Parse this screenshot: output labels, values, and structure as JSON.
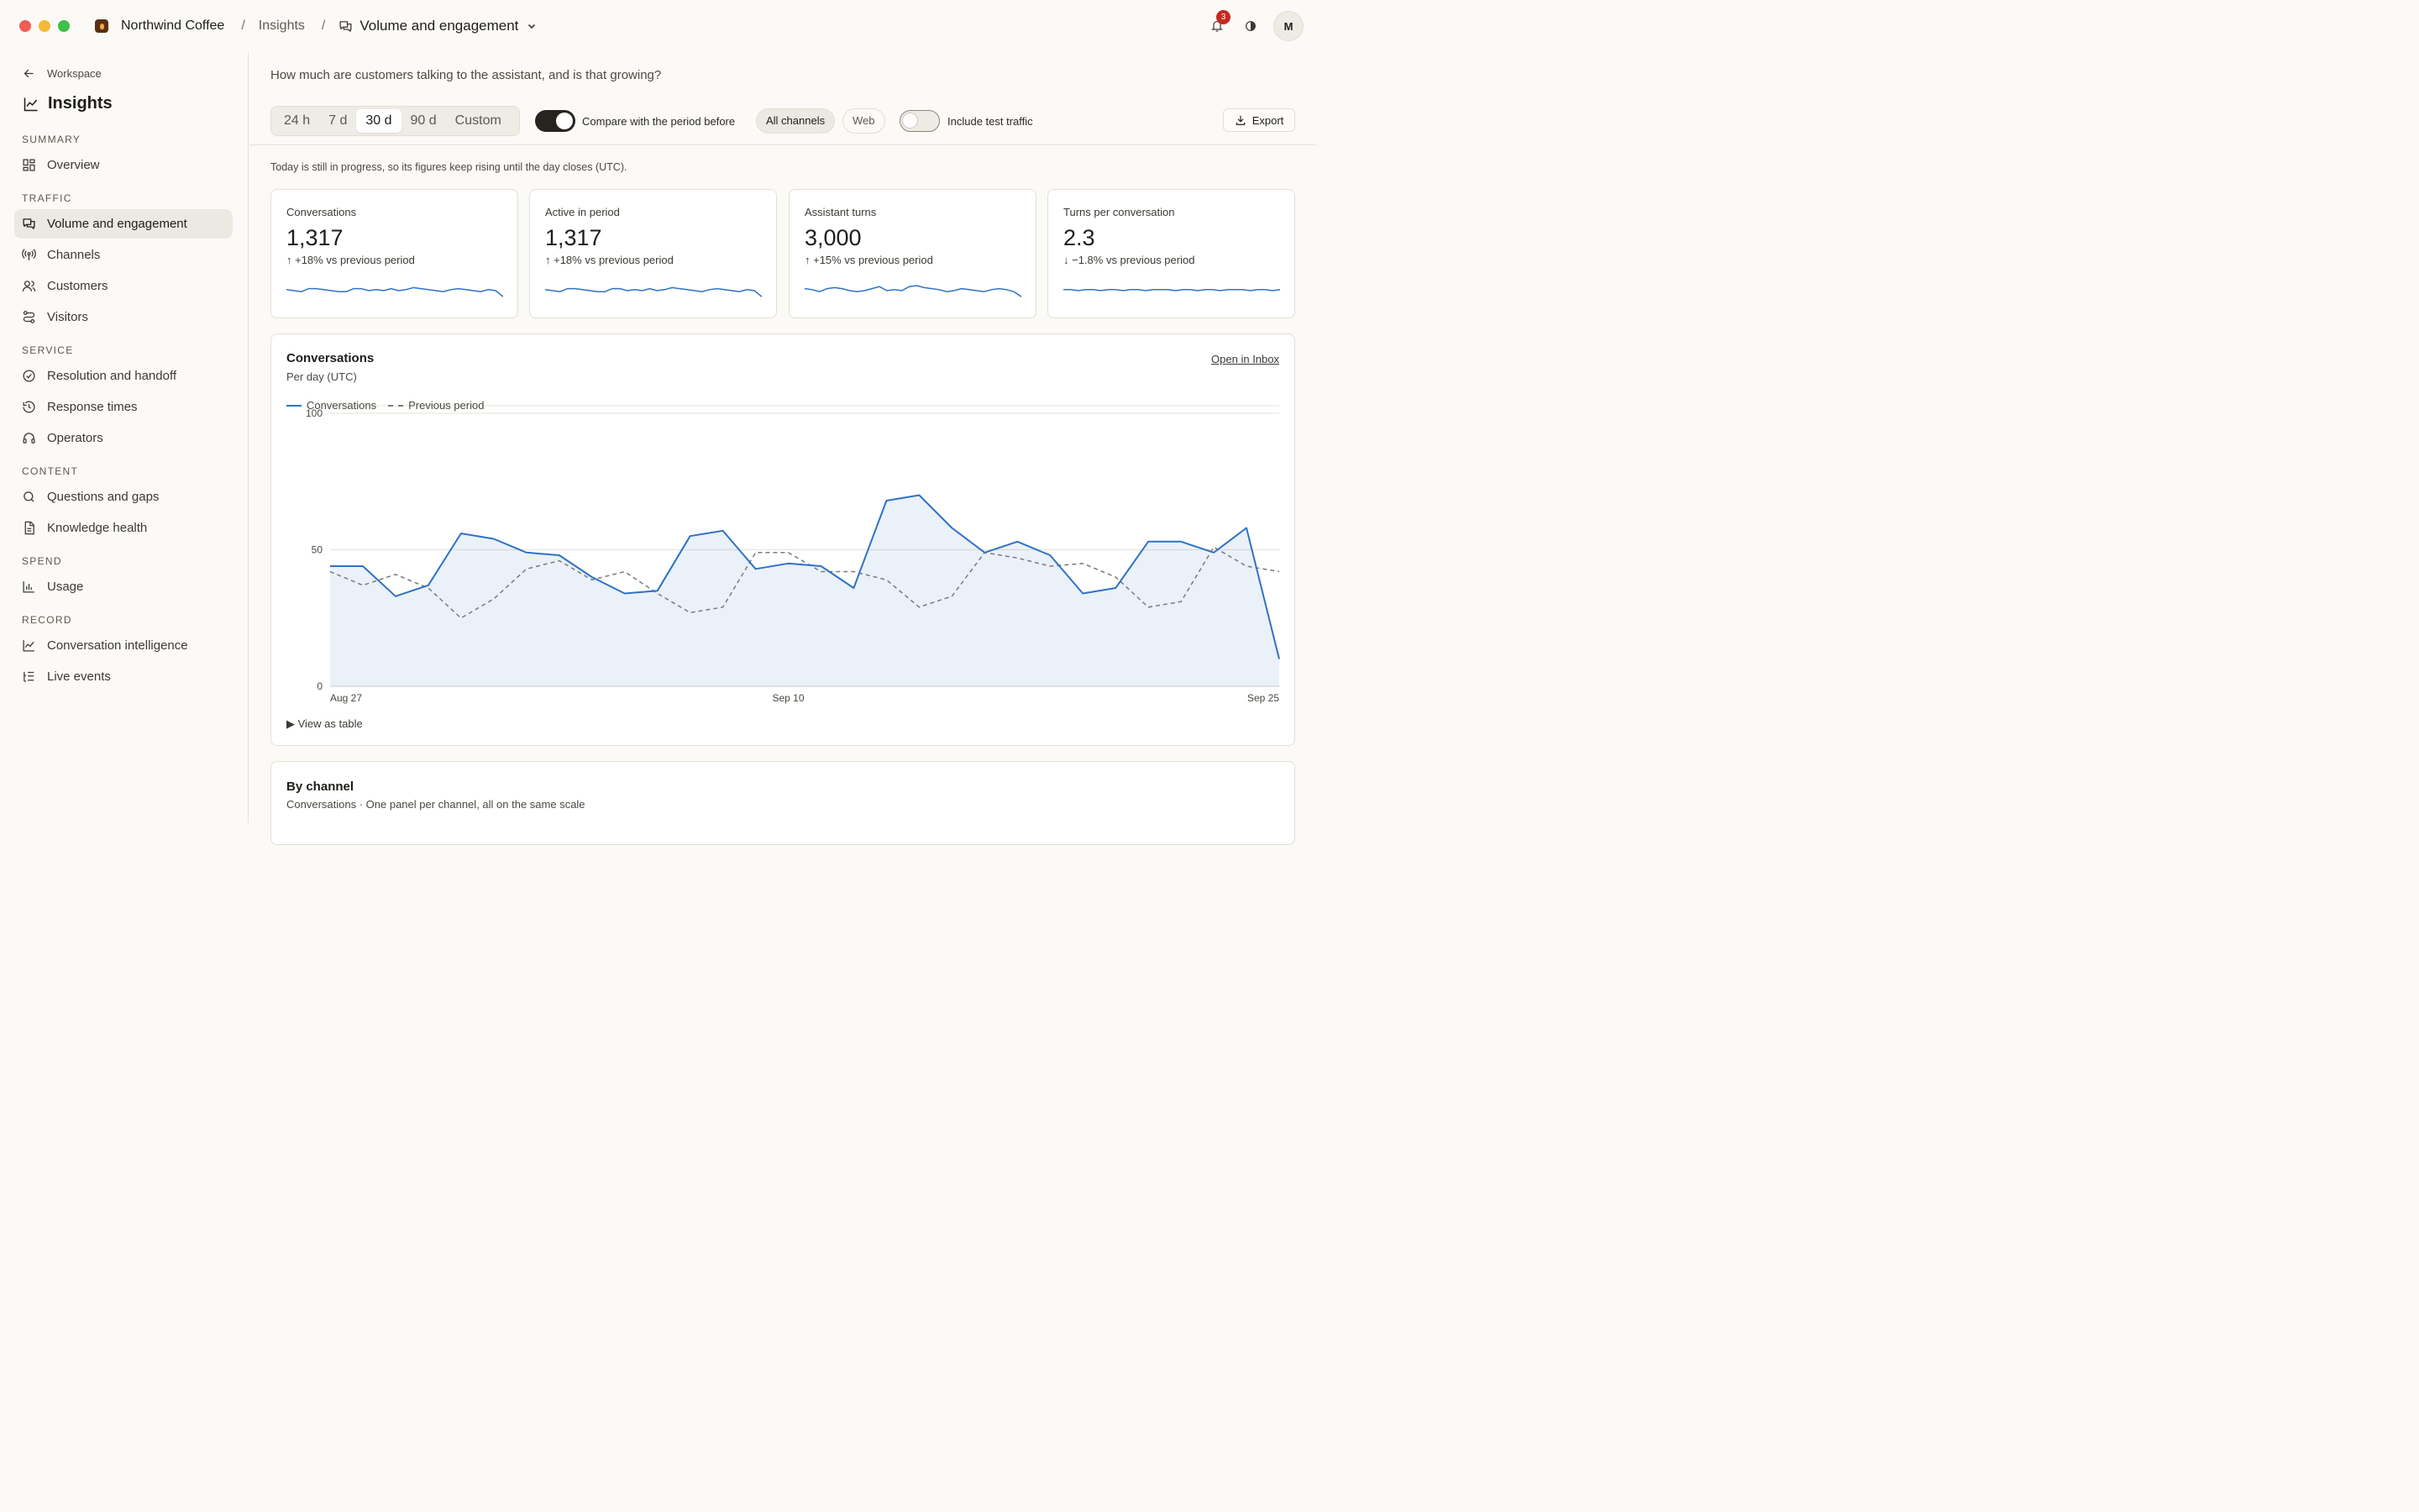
{
  "titlebar": {
    "brand": "Northwind Coffee",
    "crumb_section": "Insights",
    "crumb_current": "Volume and engagement",
    "notifications_count": "3",
    "avatar_initial": "M"
  },
  "sidebar": {
    "back_label": "Workspace",
    "title": "Insights",
    "sections": {
      "summary": "SUMMARY",
      "traffic": "TRAFFIC",
      "service": "SERVICE",
      "content": "CONTENT",
      "spend": "SPEND",
      "record": "RECORD"
    },
    "items": {
      "overview": "Overview",
      "volume": "Volume and engagement",
      "channels": "Channels",
      "customers": "Customers",
      "visitors": "Visitors",
      "resolution": "Resolution and handoff",
      "response": "Response times",
      "operators": "Operators",
      "questions": "Questions and gaps",
      "knowledge": "Knowledge health",
      "usage": "Usage",
      "intelligence": "Conversation intelligence",
      "live": "Live events"
    }
  },
  "main": {
    "question": "How much are customers talking to the assistant, and is that growing?",
    "ranges": [
      "24 h",
      "7 d",
      "30 d",
      "90 d",
      "Custom"
    ],
    "active_range": "30 d",
    "compare_label": "Compare with the period before",
    "compare_on": true,
    "channel_all": "All channels",
    "channel_web": "Web",
    "test_traffic_label": "Include test traffic",
    "test_traffic_on": false,
    "export_label": "Export",
    "note": "Today is still in progress, so its figures keep rising until the day closes (UTC)."
  },
  "kpis": [
    {
      "label": "Conversations",
      "value": "1,317",
      "delta": "↑ +18% vs previous period",
      "spark": [
        46,
        45,
        44,
        47,
        47,
        46,
        45,
        44,
        44,
        47,
        47,
        45,
        46,
        45,
        47,
        45,
        46,
        48,
        47,
        46,
        45,
        44,
        46,
        47,
        46,
        45,
        44,
        46,
        45,
        39
      ]
    },
    {
      "label": "Active in period",
      "value": "1,317",
      "delta": "↑ +18% vs previous period",
      "spark": [
        46,
        45,
        44,
        47,
        47,
        46,
        45,
        44,
        44,
        47,
        47,
        45,
        46,
        45,
        47,
        45,
        46,
        48,
        47,
        46,
        45,
        44,
        46,
        47,
        46,
        45,
        44,
        46,
        45,
        39
      ]
    },
    {
      "label": "Assistant turns",
      "value": "3,000",
      "delta": "↑ +15% vs previous period",
      "spark": [
        47,
        46,
        44,
        47,
        48,
        47,
        45,
        44,
        45,
        47,
        49,
        45,
        46,
        45,
        49,
        50,
        48,
        47,
        46,
        44,
        45,
        47,
        46,
        45,
        44,
        46,
        47,
        46,
        44,
        39
      ]
    },
    {
      "label": "Turns per conversation",
      "value": "2.3",
      "delta": "↓ −1.8% vs previous period",
      "spark": [
        46,
        46,
        45,
        46,
        46,
        45,
        46,
        46,
        45,
        46,
        46,
        45,
        46,
        46,
        46,
        45,
        46,
        46,
        45,
        46,
        46,
        45,
        46,
        46,
        46,
        45,
        46,
        46,
        45,
        46
      ]
    }
  ],
  "conversations_card": {
    "title": "Conversations",
    "subtitle": "Per day (UTC)",
    "link": "Open in Inbox",
    "view_table": "▶ View as table"
  },
  "chart_data": {
    "type": "area",
    "title": "Conversations",
    "subtitle": "Per day (UTC)",
    "x_ticks": [
      "Aug 27",
      "Sep 10",
      "Sep 25"
    ],
    "ylim": [
      0,
      100
    ],
    "y_ticks": [
      0,
      50,
      100
    ],
    "grid": true,
    "legend": "top-left",
    "series": [
      {
        "name": "Conversations",
        "style": "solid-area",
        "color": "#2f72c4",
        "values": [
          44,
          44,
          33,
          37,
          56,
          54,
          49,
          48,
          40,
          34,
          35,
          55,
          57,
          43,
          45,
          44,
          36,
          68,
          70,
          58,
          49,
          53,
          48,
          34,
          36,
          53,
          53,
          49,
          58,
          10
        ]
      },
      {
        "name": "Previous period",
        "style": "dashed",
        "color": "#7d7a74",
        "values": [
          42,
          37,
          41,
          36,
          25,
          32,
          43,
          46,
          39,
          42,
          34,
          27,
          29,
          49,
          49,
          42,
          42,
          39,
          29,
          33,
          49,
          47,
          44,
          45,
          40,
          29,
          31,
          51,
          44,
          42
        ]
      }
    ]
  },
  "by_channel": {
    "title": "By channel",
    "subtitle": "Conversations · One panel per channel, all on the same scale"
  }
}
